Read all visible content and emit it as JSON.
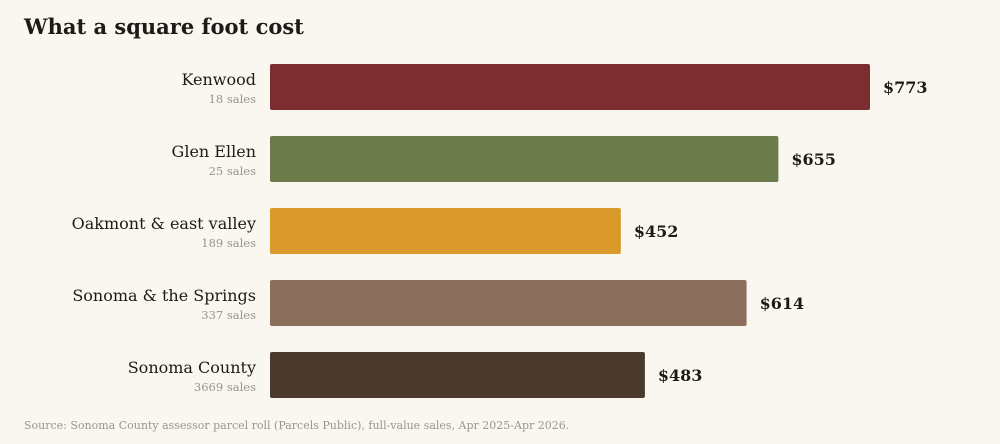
{
  "title": "What a square foot cost",
  "source": "Source: Sonoma County assessor parcel roll (Parcels Public), full-value sales, Apr 2025-Apr 2026.",
  "chart_data": {
    "type": "bar",
    "orientation": "horizontal",
    "title": "What a square foot cost",
    "categories": [
      "Kenwood",
      "Glen Ellen",
      "Oakmont & east valley",
      "Sonoma & the Springs",
      "Sonoma County"
    ],
    "sublabels": [
      "18 sales",
      "25 sales",
      "189 sales",
      "337 sales",
      "3669 sales"
    ],
    "values": [
      773,
      655,
      452,
      614,
      483
    ],
    "value_labels": [
      "$773",
      "$655",
      "$452",
      "$614",
      "$483"
    ],
    "colors": [
      "#7b2d2f",
      "#6b7c4a",
      "#d99a2b",
      "#8b6e5c",
      "#4a3a2b"
    ],
    "xlim": [
      0,
      773
    ],
    "grid": false,
    "legend": "none"
  }
}
